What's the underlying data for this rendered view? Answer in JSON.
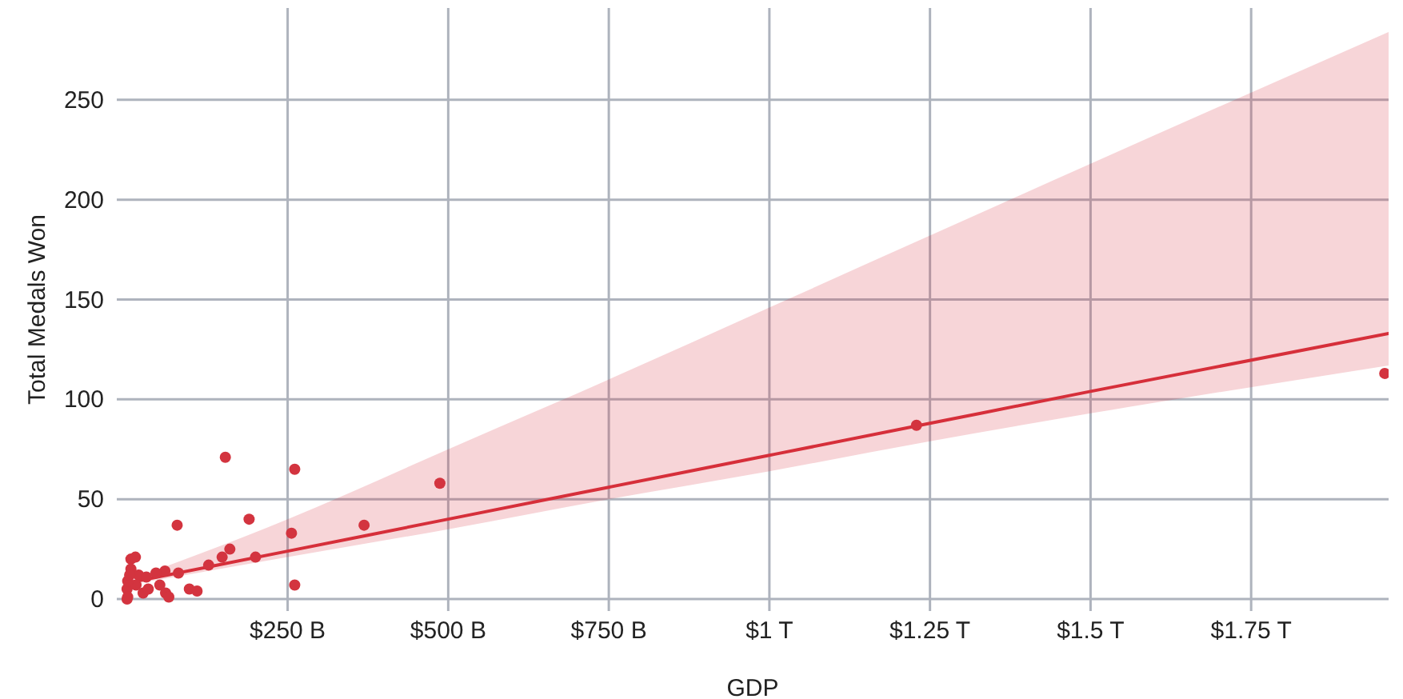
{
  "chart_data": {
    "type": "scatter",
    "xlabel": "GDP",
    "ylabel": "Total Medals Won",
    "xlim": [
      -16000000000,
      1964000000000
    ],
    "ylim": [
      -6,
      296
    ],
    "xticks": [
      {
        "value": 250000000000,
        "label": "$250 B"
      },
      {
        "value": 500000000000,
        "label": "$500 B"
      },
      {
        "value": 750000000000,
        "label": "$750 B"
      },
      {
        "value": 1000000000000,
        "label": "$1 T"
      },
      {
        "value": 1250000000000,
        "label": "$1.25 T"
      },
      {
        "value": 1500000000000,
        "label": "$1.5 T"
      },
      {
        "value": 1750000000000,
        "label": "$1.75 T"
      }
    ],
    "yticks": [
      0,
      50,
      100,
      150,
      200,
      250
    ],
    "grid": true,
    "marker": "circle",
    "series": [
      {
        "type": "line",
        "marker": "none",
        "color": "#d62f3a",
        "line_style": "solid",
        "x": [
          0,
          250000000000,
          500000000000,
          750000000000,
          1000000000000,
          1250000000000,
          1500000000000,
          1964000000000
        ],
        "values": [
          8,
          24,
          40,
          56,
          72,
          88,
          104,
          133
        ],
        "lower": [
          7,
          21,
          35,
          50,
          64,
          79,
          93,
          117
        ],
        "upper": [
          9,
          40,
          75,
          110,
          146,
          182,
          218,
          284
        ]
      },
      {
        "color": "#d3343f",
        "x": [
          1958000000000,
          1229000000000,
          487000000000,
          369000000000,
          261000000000,
          256000000000,
          261000000000,
          153000000000,
          190000000000,
          200000000000,
          160000000000,
          148000000000,
          127000000000,
          78000000000,
          80000000000,
          59000000000,
          45000000000,
          97000000000,
          109000000000,
          60000000000,
          65000000000,
          6000000000,
          13000000000,
          6000000000,
          18000000000,
          30000000000,
          51000000000,
          0,
          0,
          25000000000,
          1000000000,
          14000000000,
          33000000000,
          1000000000,
          4000000000
        ],
        "values": [
          113,
          87,
          58,
          37,
          65,
          33,
          7,
          71,
          40,
          21,
          25,
          21,
          17,
          37,
          13,
          14,
          13,
          5,
          4,
          3,
          1,
          20,
          21,
          15,
          12,
          11,
          7,
          0,
          5,
          3,
          1,
          7,
          5,
          9,
          12
        ]
      }
    ]
  }
}
